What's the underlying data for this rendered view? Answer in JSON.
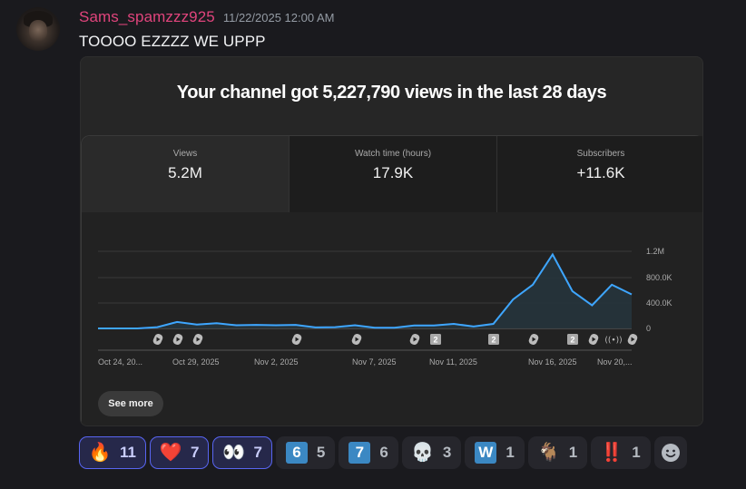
{
  "message": {
    "username": "Sams_spamzzz925",
    "timestamp": "11/22/2025 12:00 AM",
    "text": "TOOOO EZZZZ WE UPPP",
    "username_color": "#e0447c"
  },
  "embed": {
    "title": "Your channel got 5,227,790 views in the last 28 days",
    "stats": [
      {
        "label": "Views",
        "value": "5.2M"
      },
      {
        "label": "Watch time (hours)",
        "value": "17.9K"
      },
      {
        "label": "Subscribers",
        "value": "+11.6K"
      }
    ],
    "see_more_label": "See more",
    "accent_color": "#3ea6ff"
  },
  "chart_data": {
    "type": "area",
    "title": "Views",
    "x_tick_labels": [
      "Oct 24, 20...",
      "Oct 29, 2025",
      "Nov 2, 2025",
      "Nov 7, 2025",
      "Nov 11, 2025",
      "Nov 16, 2025",
      "Nov 20,..."
    ],
    "y_tick_labels": [
      "0",
      "400.0K",
      "800.0K",
      "1.2M"
    ],
    "ylim": [
      0,
      1200000
    ],
    "grid": true,
    "series": [
      {
        "name": "Views",
        "values": [
          0,
          0,
          0,
          20000,
          100000,
          60000,
          80000,
          50000,
          55000,
          50000,
          55000,
          15000,
          20000,
          50000,
          10000,
          10000,
          45000,
          45000,
          70000,
          30000,
          70000,
          450000,
          680000,
          1150000,
          580000,
          360000,
          680000,
          530000
        ]
      }
    ],
    "content_markers": [
      "shorts",
      "shorts",
      "shorts",
      "shorts",
      "shorts",
      "shorts",
      "video-2",
      "video-2",
      "shorts",
      "video-2",
      "shorts",
      "live",
      "shorts"
    ]
  },
  "reactions": [
    {
      "emoji": "🔥",
      "name": "fire",
      "count": "11",
      "me": true
    },
    {
      "emoji": "❤️",
      "name": "heart",
      "count": "7",
      "me": true
    },
    {
      "emoji": "👀",
      "name": "eyes",
      "count": "7",
      "me": true
    },
    {
      "emoji": "6",
      "name": "six",
      "count": "5",
      "me": false,
      "keycap": true
    },
    {
      "emoji": "7",
      "name": "seven",
      "count": "6",
      "me": false,
      "keycap": true
    },
    {
      "emoji": "💀",
      "name": "skull",
      "count": "3",
      "me": false
    },
    {
      "emoji": "W",
      "name": "regional-w",
      "count": "1",
      "me": false,
      "keycap": true
    },
    {
      "emoji": "🐐",
      "name": "goat",
      "count": "1",
      "me": false
    },
    {
      "emoji": "‼️",
      "name": "double-exclamation",
      "count": "1",
      "me": false
    }
  ]
}
